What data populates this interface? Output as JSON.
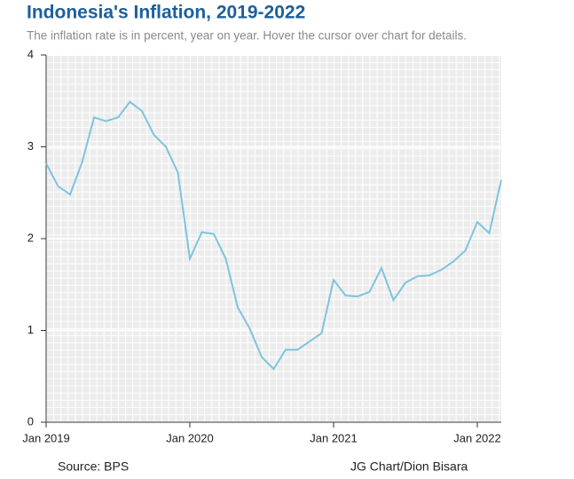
{
  "chart_data": {
    "type": "line",
    "title": "Indonesia's Inflation, 2019-2022",
    "subtitle": "The inflation rate is in percent, year on year. Hover the cursor over chart for details.",
    "source": "Source: BPS",
    "credit": "JG Chart/Dion Bisara",
    "x": [
      "2019-01",
      "2019-02",
      "2019-03",
      "2019-04",
      "2019-05",
      "2019-06",
      "2019-07",
      "2019-08",
      "2019-09",
      "2019-10",
      "2019-11",
      "2019-12",
      "2020-01",
      "2020-02",
      "2020-03",
      "2020-04",
      "2020-05",
      "2020-06",
      "2020-07",
      "2020-08",
      "2020-09",
      "2020-10",
      "2020-11",
      "2020-12",
      "2021-01",
      "2021-02",
      "2021-03",
      "2021-04",
      "2021-05",
      "2021-06",
      "2021-07",
      "2021-08",
      "2021-09",
      "2021-10",
      "2021-11",
      "2021-12",
      "2022-01",
      "2022-02",
      "2022-03"
    ],
    "series": [
      {
        "color": "#7ec4de",
        "values": [
          2.82,
          2.57,
          2.48,
          2.83,
          3.32,
          3.28,
          3.32,
          3.49,
          3.39,
          3.13,
          3.0,
          2.72,
          1.78,
          2.07,
          2.05,
          1.78,
          1.25,
          1.02,
          0.71,
          0.58,
          0.79,
          0.79,
          0.88,
          0.97,
          1.55,
          1.38,
          1.37,
          1.42,
          1.68,
          1.33,
          1.52,
          1.59,
          1.6,
          1.66,
          1.75,
          1.87,
          2.18,
          2.06,
          2.64
        ]
      }
    ],
    "xlim": [
      "2019-01",
      "2022-03"
    ],
    "xticks": [
      {
        "value": "2019-01",
        "label": "Jan 2019"
      },
      {
        "value": "2020-01",
        "label": "Jan 2020"
      },
      {
        "value": "2021-01",
        "label": "Jan 2021"
      },
      {
        "value": "2022-01",
        "label": "Jan 2022"
      }
    ],
    "ylim": [
      0,
      4
    ],
    "yticks": [
      0,
      1,
      2,
      3,
      4
    ],
    "grid": true
  }
}
